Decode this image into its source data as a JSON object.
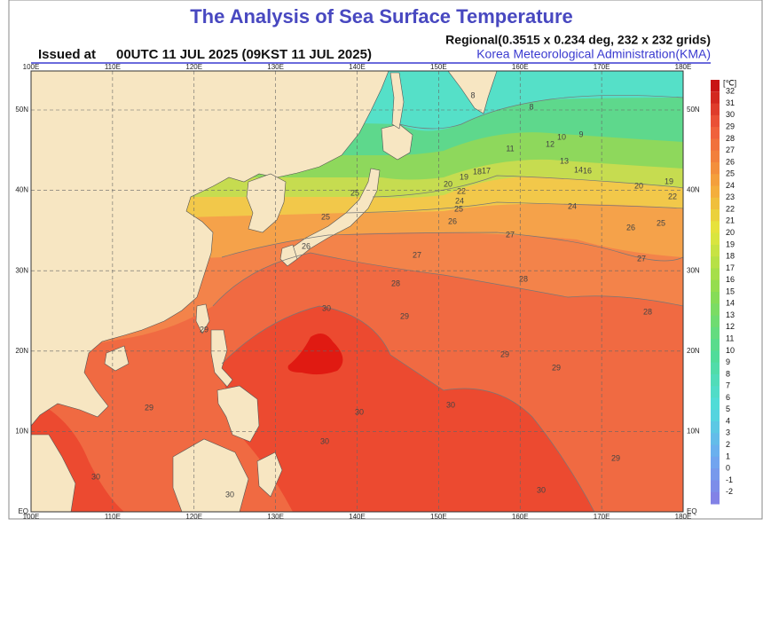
{
  "header": {
    "title": "The Analysis of Sea Surface Temperature",
    "issued_label": "Issued at",
    "issued_time": "00UTC 11 JUL 2025 (09KST 11 JUL 2025)",
    "grid_info": "Regional(0.3515 x 0.234 deg, 232 x 232 grids)",
    "agency": "Korea Meteorological Administration(KMA)"
  },
  "map": {
    "lon_labels": [
      "100E",
      "110E",
      "120E",
      "130E",
      "140E",
      "150E",
      "160E",
      "170E",
      "180E"
    ],
    "lat_labels": [
      "EQ",
      "10N",
      "20N",
      "30N",
      "40N",
      "50N"
    ],
    "contour_labels": [
      8,
      8,
      9,
      10,
      12,
      11,
      13,
      14,
      16,
      17,
      18,
      19,
      20,
      22,
      24,
      25,
      26,
      25,
      25,
      26,
      27,
      27,
      27,
      24,
      20,
      19,
      22,
      26,
      25,
      28,
      28,
      28,
      30,
      29,
      29,
      29,
      30,
      30,
      30,
      30,
      30,
      29,
      29,
      29,
      30
    ]
  },
  "colorbar": {
    "unit": "[℃]",
    "ticks": [
      32,
      31,
      30,
      29,
      28,
      27,
      26,
      25,
      24,
      23,
      22,
      21,
      20,
      19,
      18,
      17,
      16,
      15,
      14,
      13,
      12,
      11,
      10,
      9,
      8,
      7,
      6,
      5,
      4,
      3,
      2,
      1,
      0,
      -1,
      -2
    ]
  }
}
